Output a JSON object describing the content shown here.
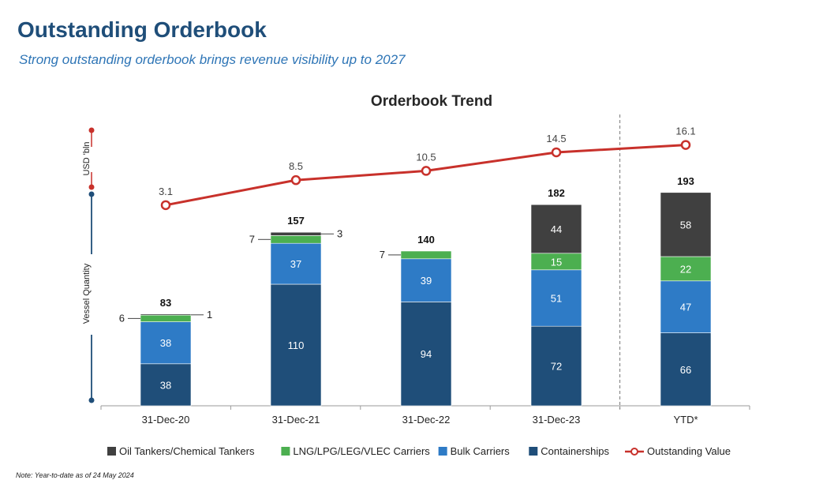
{
  "page": {
    "title": "Outstanding Orderbook",
    "subtitle": "Strong outstanding orderbook brings revenue visibility up to 2027",
    "note": "Note: Year-to-date as of 24 May 2024"
  },
  "colors": {
    "oil": "#404040",
    "lng": "#4caf50",
    "bulk": "#2e7bc6",
    "container": "#1f4e79",
    "line": "#c8312b",
    "title": "#1f4e79",
    "subtitle": "#2e75b6"
  },
  "chart_data": {
    "type": "bar",
    "title": "Orderbook Trend",
    "stacked": true,
    "categories": [
      "31-Dec-20",
      "31-Dec-21",
      "31-Dec-22",
      "31-Dec-23",
      "YTD*"
    ],
    "series": [
      {
        "name": "Containerships",
        "color_key": "container",
        "values": [
          38,
          110,
          94,
          72,
          66
        ]
      },
      {
        "name": "Bulk Carriers",
        "color_key": "bulk",
        "values": [
          38,
          37,
          39,
          51,
          47
        ]
      },
      {
        "name": "LNG/LPG/LEG/VLEC Carriers",
        "color_key": "lng",
        "values": [
          6,
          7,
          7,
          15,
          22
        ]
      },
      {
        "name": "Oil Tankers/Chemical Tankers",
        "color_key": "oil",
        "values": [
          1,
          3,
          0,
          44,
          58
        ]
      }
    ],
    "totals": [
      83,
      157,
      140,
      182,
      193
    ],
    "line_series": {
      "name": "Outstanding Value",
      "values": [
        3.1,
        8.5,
        10.5,
        14.5,
        16.1
      ],
      "labels": [
        "3.1",
        "8.5",
        "10.5",
        "14.5",
        "16.1"
      ]
    },
    "callouts": [
      {
        "category_index": 0,
        "series": "LNG/LPG/LEG/VLEC Carriers",
        "label": "6",
        "side": "left"
      },
      {
        "category_index": 0,
        "series": "Oil Tankers/Chemical Tankers",
        "label": "1",
        "side": "right"
      },
      {
        "category_index": 1,
        "series": "LNG/LPG/LEG/VLEC Carriers",
        "label": "7",
        "side": "left"
      },
      {
        "category_index": 1,
        "series": "Oil Tankers/Chemical Tankers",
        "label": "3",
        "side": "right"
      },
      {
        "category_index": 2,
        "series": "LNG/LPG/LEG/VLEC Carriers",
        "label": "7",
        "side": "left"
      }
    ],
    "ylabel_top": "USD 'bln",
    "ylabel_bottom": "Vessel Quantity",
    "ylim_bars": [
      0,
      200
    ],
    "ylim_line": [
      0,
      30
    ],
    "legend": {
      "placement": "bottom",
      "items": [
        {
          "label": "Oil Tankers/Chemical Tankers",
          "color_key": "oil",
          "kind": "box"
        },
        {
          "label": "LNG/LPG/LEG/VLEC Carriers",
          "color_key": "lng",
          "kind": "box"
        },
        {
          "label": "Bulk Carriers",
          "color_key": "bulk",
          "kind": "box"
        },
        {
          "label": "Containerships",
          "color_key": "container",
          "kind": "box"
        },
        {
          "label": "Outstanding Value",
          "color_key": "line",
          "kind": "line"
        }
      ]
    },
    "divider_after_index": 3
  }
}
